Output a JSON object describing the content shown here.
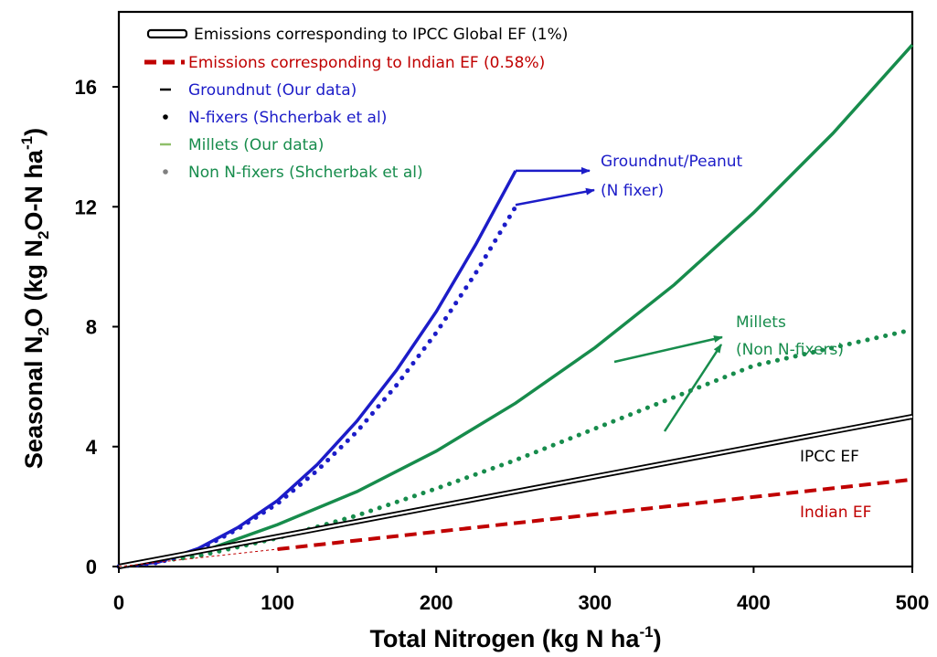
{
  "chart_data": {
    "type": "line",
    "xlabel": {
      "main": "Total Nitrogen (kg N ha",
      "sup": "-1",
      "tail": ")"
    },
    "ylabel": {
      "p1": "Seasonal N",
      "sub": "2",
      "p2": "O (kg N",
      "sub2": "2",
      "p3": "O-N ha",
      "sup": "-1",
      "p4": ")"
    },
    "xlim": [
      0,
      500
    ],
    "ylim": [
      0,
      18.5
    ],
    "xticks": [
      0,
      100,
      200,
      300,
      400,
      500
    ],
    "yticks": [
      0,
      4,
      8,
      12,
      16
    ],
    "grid": false,
    "legend_position": "top-left",
    "colors": {
      "ipcc": "#000000",
      "indian": "#c00000",
      "groundnut": "#1c1cc8",
      "millets": "#178c4c",
      "gray": "#808080"
    },
    "series": [
      {
        "name": "Emissions corresponding to IPCC Global EF (1%)",
        "style": "double-line",
        "color": "#000000",
        "points": [
          [
            0,
            0
          ],
          [
            500,
            5
          ]
        ]
      },
      {
        "name": "Emissions corresponding to Indian EF (0.58%)",
        "style": "dashed",
        "color": "#c00000",
        "points": [
          [
            100,
            0.58
          ],
          [
            500,
            2.9
          ]
        ]
      },
      {
        "name": "Groundnut (Our data)",
        "style": "solid",
        "color": "#1c1cc8",
        "points": [
          [
            0,
            0
          ],
          [
            25,
            0.15
          ],
          [
            50,
            0.6
          ],
          [
            75,
            1.3
          ],
          [
            100,
            2.2
          ],
          [
            125,
            3.4
          ],
          [
            150,
            4.85
          ],
          [
            175,
            6.55
          ],
          [
            200,
            8.5
          ],
          [
            225,
            10.75
          ],
          [
            250,
            13.2
          ]
        ]
      },
      {
        "name": "N-fixers (Shcherbak et al)",
        "style": "dotted",
        "color": "#1c1cc8",
        "points": [
          [
            0,
            0
          ],
          [
            25,
            0.13
          ],
          [
            50,
            0.55
          ],
          [
            75,
            1.25
          ],
          [
            100,
            2.1
          ],
          [
            125,
            3.2
          ],
          [
            150,
            4.5
          ],
          [
            175,
            6.05
          ],
          [
            200,
            7.8
          ],
          [
            225,
            9.8
          ],
          [
            250,
            12.0
          ]
        ]
      },
      {
        "name": "Millets (Our data)",
        "style": "solid",
        "color": "#178c4c",
        "points": [
          [
            0,
            0
          ],
          [
            50,
            0.45
          ],
          [
            100,
            1.4
          ],
          [
            150,
            2.5
          ],
          [
            200,
            3.85
          ],
          [
            250,
            5.45
          ],
          [
            300,
            7.3
          ],
          [
            350,
            9.4
          ],
          [
            400,
            11.8
          ],
          [
            450,
            14.45
          ],
          [
            500,
            17.4
          ]
        ]
      },
      {
        "name": "Non N-fixers (Shcherbak et al)",
        "style": "dotted",
        "color": "#178c4c",
        "points": [
          [
            0,
            0
          ],
          [
            50,
            0.35
          ],
          [
            100,
            0.95
          ],
          [
            150,
            1.7
          ],
          [
            200,
            2.6
          ],
          [
            250,
            3.55
          ],
          [
            300,
            4.6
          ],
          [
            350,
            5.65
          ],
          [
            400,
            6.7
          ],
          [
            450,
            7.3
          ],
          [
            500,
            7.9
          ]
        ]
      }
    ],
    "annotations": [
      {
        "key": "groundnut",
        "lines": [
          "Groundnut/Peanut",
          "(N fixer)"
        ],
        "color": "#1c1cc8"
      },
      {
        "key": "millets",
        "lines": [
          "Millets",
          "(Non N-fixers)"
        ],
        "color": "#178c4c"
      },
      {
        "key": "ipcc",
        "lines": [
          "IPCC EF"
        ],
        "color": "#000000"
      },
      {
        "key": "indian",
        "lines": [
          "Indian EF"
        ],
        "color": "#c00000"
      }
    ]
  }
}
